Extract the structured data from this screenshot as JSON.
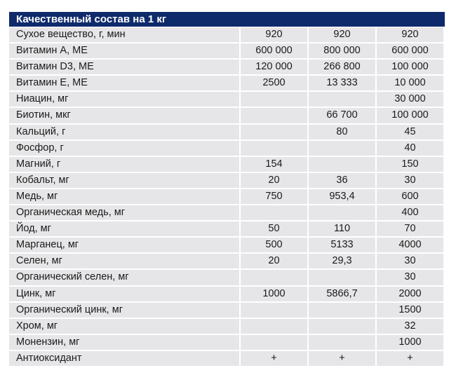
{
  "title": "Качественный состав на 1 кг",
  "rows": [
    [
      "Сухое вещество, г, мин",
      "920",
      "920",
      "920"
    ],
    [
      "Витамин А, МЕ",
      "600 000",
      "800 000",
      "600 000"
    ],
    [
      "Витамин D3, МЕ",
      "120 000",
      "266 800",
      "100 000"
    ],
    [
      "Витамин Е, МЕ",
      "2500",
      "13 333",
      "10 000"
    ],
    [
      "Ниацин, мг",
      "",
      "",
      "30 000"
    ],
    [
      "Биотин, мкг",
      "",
      "66 700",
      "100 000"
    ],
    [
      "Кальций, г",
      "",
      "80",
      "45"
    ],
    [
      "Фосфор, г",
      "",
      "",
      "40"
    ],
    [
      "Магний, г",
      "154",
      "",
      "150"
    ],
    [
      "Кобальт, мг",
      "20",
      "36",
      "30"
    ],
    [
      "Медь, мг",
      "750",
      "953,4",
      "600"
    ],
    [
      "Органическая медь, мг",
      "",
      "",
      "400"
    ],
    [
      "Йод, мг",
      "50",
      "110",
      "70"
    ],
    [
      "Марганец, мг",
      "500",
      "5133",
      "4000"
    ],
    [
      "Селен, мг",
      "20",
      "29,3",
      "30"
    ],
    [
      "Органический селен, мг",
      "",
      "",
      "30"
    ],
    [
      "Цинк, мг",
      "1000",
      "5866,7",
      "2000"
    ],
    [
      "Органический цинк, мг",
      "",
      "",
      "1500"
    ],
    [
      "Хром, мг",
      "",
      "",
      "32"
    ],
    [
      "Монензин, мг",
      "",
      "",
      "1000"
    ],
    [
      "Антиоксидант",
      "+",
      "+",
      "+"
    ]
  ]
}
